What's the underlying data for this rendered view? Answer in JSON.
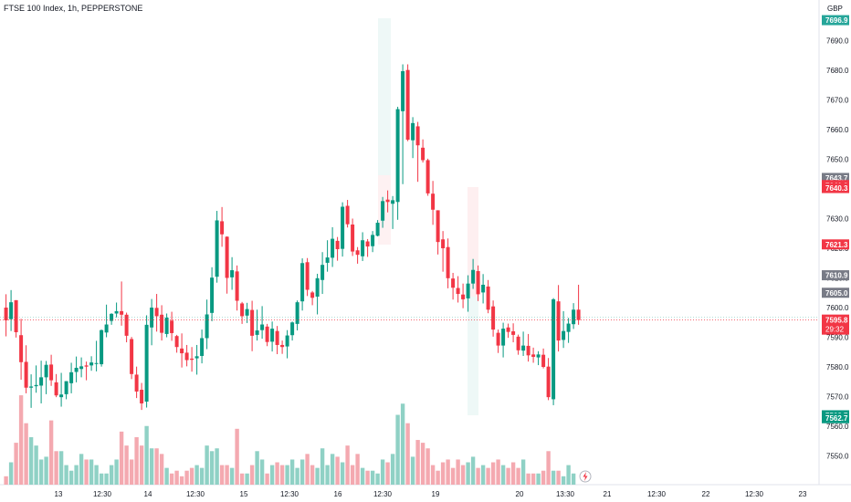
{
  "header": {
    "title": "FTSE 100 Index, 1h, PEPPERSTONE"
  },
  "currency": "GBP",
  "price_badges": [
    {
      "label": "7696.9",
      "price": 7696.9,
      "color": "#26a69a"
    },
    {
      "label": "7643.7",
      "price": 7643.7,
      "color": "#787b86"
    },
    {
      "label": "7641.3",
      "price": 7641.3,
      "color": "#f23645"
    },
    {
      "label": "7640.3",
      "price": 7640.3,
      "color": "#f23645"
    },
    {
      "label": "7621.3",
      "price": 7621.3,
      "color": "#f23645"
    },
    {
      "label": "7610.9",
      "price": 7610.9,
      "color": "#787b86"
    },
    {
      "label": "7605.0",
      "price": 7605.0,
      "color": "#787b86"
    },
    {
      "label": "7563.7",
      "price": 7563.7,
      "color": "#089981"
    },
    {
      "label": "7562.7",
      "price": 7562.7,
      "color": "#089981"
    }
  ],
  "last_price": {
    "label": "7595.8",
    "countdown": "29:32",
    "price": 7595.8,
    "color": "#f23645"
  },
  "chart_data": {
    "type": "candlestick",
    "title": "FTSE 100 Index, 1h, PEPPERSTONE",
    "ylim": [
      7545,
      7699
    ],
    "y_ticks": [
      "7690.0",
      "7680.0",
      "7670.0",
      "7660.0",
      "7650.0",
      "7640.0",
      "7630.0",
      "7620.0",
      "7610.0",
      "7600.0",
      "7590.0",
      "7580.0",
      "7570.0",
      "7560.0",
      "7550.0"
    ],
    "x_tick_labels": [
      "13",
      "12:30",
      "14",
      "12:30",
      "15",
      "12:30",
      "16",
      "12:30",
      "19",
      "20",
      "13:30",
      "21",
      "12:30",
      "22",
      "12:30",
      "23"
    ],
    "up_color": "#089981",
    "down_color": "#f23645",
    "ohlc": [
      [
        7600.0,
        7604.5,
        7590.3,
        7595.7
      ],
      [
        7596.1,
        7605.9,
        7592.1,
        7601.8
      ],
      [
        7602.5,
        7602.5,
        7589.9,
        7591.7
      ],
      [
        7590.7,
        7596.2,
        7575.7,
        7581.6
      ],
      [
        7581.7,
        7587.3,
        7571.1,
        7573.0
      ],
      [
        7573.0,
        7577.5,
        7566.2,
        7573.4
      ],
      [
        7573.5,
        7580.5,
        7571.3,
        7573.9
      ],
      [
        7573.7,
        7582.1,
        7567.7,
        7576.5
      ],
      [
        7576.5,
        7582.0,
        7570.8,
        7580.7
      ],
      [
        7580.8,
        7584.1,
        7573.6,
        7575.5
      ],
      [
        7574.8,
        7577.6,
        7569.8,
        7570.4
      ],
      [
        7569.8,
        7578.0,
        7566.6,
        7570.7
      ],
      [
        7570.8,
        7575.2,
        7569.1,
        7575.2
      ],
      [
        7574.5,
        7581.4,
        7571.1,
        7578.2
      ],
      [
        7578.3,
        7583.5,
        7574.8,
        7579.7
      ],
      [
        7579.3,
        7583.2,
        7576.5,
        7580.2
      ],
      [
        7580.5,
        7581.8,
        7575.5,
        7580.1
      ],
      [
        7580.5,
        7583.6,
        7578.7,
        7581.5
      ],
      [
        7581.3,
        7588.8,
        7578.5,
        7581.3
      ],
      [
        7580.9,
        7592.6,
        7580.1,
        7592.4
      ],
      [
        7591.6,
        7601.0,
        7590.0,
        7594.3
      ],
      [
        7595.5,
        7598.1,
        7594.2,
        7597.9
      ],
      [
        7598.0,
        7601.7,
        7596.7,
        7598.8
      ],
      [
        7598.8,
        7608.8,
        7593.9,
        7597.6
      ],
      [
        7597.6,
        7598.3,
        7588.3,
        7590.5
      ],
      [
        7589.4,
        7590.1,
        7575.9,
        7577.6
      ],
      [
        7577.4,
        7580.1,
        7569.5,
        7571.7
      ],
      [
        7572.3,
        7574.6,
        7565.5,
        7567.7
      ],
      [
        7568.3,
        7597.4,
        7566.3,
        7594.2
      ],
      [
        7593.3,
        7602.9,
        7587.3,
        7600.0
      ],
      [
        7599.9,
        7604.6,
        7591.9,
        7597.1
      ],
      [
        7597.6,
        7600.8,
        7588.9,
        7591.5
      ],
      [
        7591.1,
        7598.0,
        7590.0,
        7596.6
      ],
      [
        7595.6,
        7598.6,
        7588.8,
        7591.4
      ],
      [
        7590.4,
        7590.8,
        7584.8,
        7586.7
      ],
      [
        7586.2,
        7591.3,
        7579.8,
        7584.6
      ],
      [
        7584.8,
        7587.4,
        7580.2,
        7582.3
      ],
      [
        7582.8,
        7586.7,
        7578.4,
        7582.4
      ],
      [
        7582.9,
        7587.4,
        7577.4,
        7583.6
      ],
      [
        7583.7,
        7592.6,
        7581.2,
        7589.7
      ],
      [
        7589.7,
        7602.7,
        7586.0,
        7597.7
      ],
      [
        7598.2,
        7613.6,
        7595.4,
        7610.1
      ],
      [
        7610.4,
        7632.6,
        7608.4,
        7629.4
      ],
      [
        7629.1,
        7633.9,
        7620.5,
        7624.7
      ],
      [
        7623.9,
        7624.0,
        7604.7,
        7610.0
      ],
      [
        7610.2,
        7617.0,
        7606.0,
        7612.6
      ],
      [
        7612.2,
        7614.2,
        7599.0,
        7602.3
      ],
      [
        7601.4,
        7601.9,
        7594.5,
        7597.1
      ],
      [
        7597.3,
        7601.6,
        7594.8,
        7599.5
      ],
      [
        7599.2,
        7602.3,
        7585.3,
        7590.5
      ],
      [
        7590.8,
        7599.3,
        7588.9,
        7592.3
      ],
      [
        7592.4,
        7600.5,
        7589.5,
        7594.3
      ],
      [
        7593.6,
        7594.5,
        7587.0,
        7588.4
      ],
      [
        7588.5,
        7595.3,
        7585.2,
        7592.9
      ],
      [
        7592.1,
        7593.8,
        7584.3,
        7587.4
      ],
      [
        7587.4,
        7588.9,
        7584.4,
        7586.7
      ],
      [
        7586.9,
        7592.4,
        7582.9,
        7590.6
      ],
      [
        7590.7,
        7595.3,
        7588.9,
        7595.0
      ],
      [
        7594.5,
        7602.4,
        7592.3,
        7601.8
      ],
      [
        7602.1,
        7616.6,
        7599.0,
        7615.0
      ],
      [
        7615.3,
        7616.7,
        7603.9,
        7606.0
      ],
      [
        7605.1,
        7605.6,
        7600.8,
        7603.3
      ],
      [
        7603.7,
        7611.4,
        7597.7,
        7609.9
      ],
      [
        7609.3,
        7618.7,
        7604.6,
        7614.4
      ],
      [
        7615.1,
        7622.7,
        7612.1,
        7616.9
      ],
      [
        7616.8,
        7627.1,
        7613.7,
        7623.2
      ],
      [
        7622.5,
        7623.8,
        7615.8,
        7619.7
      ],
      [
        7619.8,
        7635.5,
        7617.2,
        7634.0
      ],
      [
        7634.3,
        7636.3,
        7627.0,
        7628.1
      ],
      [
        7628.0,
        7630.0,
        7617.4,
        7618.9
      ],
      [
        7619.3,
        7620.4,
        7614.8,
        7617.8
      ],
      [
        7617.3,
        7625.4,
        7615.7,
        7622.7
      ],
      [
        7622.3,
        7623.1,
        7617.1,
        7620.6
      ],
      [
        7620.7,
        7625.8,
        7618.7,
        7624.5
      ],
      [
        7624.2,
        7629.5,
        7624.0,
        7628.6
      ],
      [
        7629.3,
        7637.3,
        7626.9,
        7635.9
      ],
      [
        7636.4,
        7639.5,
        7632.1,
        7635.6
      ],
      [
        7635.0,
        7637.6,
        7626.5,
        7636.2
      ],
      [
        7635.6,
        7667.7,
        7629.6,
        7666.9
      ],
      [
        7666.2,
        7682.0,
        7641.6,
        7679.7
      ],
      [
        7680.1,
        7682.0,
        7656.1,
        7656.6
      ],
      [
        7656.4,
        7664.2,
        7650.4,
        7662.2
      ],
      [
        7661.1,
        7662.6,
        7642.4,
        7654.7
      ],
      [
        7653.9,
        7656.7,
        7648.9,
        7649.7
      ],
      [
        7649.7,
        7650.2,
        7637.7,
        7638.5
      ],
      [
        7638.4,
        7642.7,
        7627.9,
        7633.0
      ],
      [
        7632.8,
        7632.8,
        7617.9,
        7622.1
      ],
      [
        7623.0,
        7625.8,
        7612.1,
        7620.0
      ],
      [
        7620.4,
        7623.3,
        7606.5,
        7609.9
      ],
      [
        7609.8,
        7611.7,
        7602.7,
        7606.7
      ],
      [
        7606.6,
        7610.6,
        7601.7,
        7604.6
      ],
      [
        7604.4,
        7608.1,
        7599.8,
        7602.8
      ],
      [
        7603.1,
        7610.9,
        7598.6,
        7608.1
      ],
      [
        7608.1,
        7616.4,
        7606.3,
        7612.7
      ],
      [
        7612.3,
        7614.2,
        7602.2,
        7604.5
      ],
      [
        7605.1,
        7611.3,
        7601.4,
        7607.7
      ],
      [
        7607.1,
        7609.3,
        7598.1,
        7599.3
      ],
      [
        7600.4,
        7602.4,
        7590.2,
        7592.6
      ],
      [
        7591.5,
        7592.6,
        7584.7,
        7587.2
      ],
      [
        7587.2,
        7594.9,
        7583.2,
        7592.9
      ],
      [
        7593.3,
        7594.6,
        7589.8,
        7591.8
      ],
      [
        7592.0,
        7594.7,
        7588.3,
        7590.8
      ],
      [
        7590.2,
        7590.9,
        7584.1,
        7585.6
      ],
      [
        7585.5,
        7591.9,
        7583.7,
        7587.2
      ],
      [
        7587.1,
        7591.1,
        7581.8,
        7583.9
      ],
      [
        7584.2,
        7586.5,
        7581.4,
        7583.4
      ],
      [
        7583.2,
        7585.3,
        7580.6,
        7584.2
      ],
      [
        7584.1,
        7586.2,
        7579.5,
        7580.0
      ],
      [
        7580.1,
        7583.0,
        7568.8,
        7569.8
      ],
      [
        7569.1,
        7603.2,
        7567.1,
        7602.8
      ],
      [
        7602.1,
        7607.6,
        7585.2,
        7588.9
      ],
      [
        7589.1,
        7598.8,
        7586.4,
        7592.1
      ],
      [
        7591.8,
        7596.5,
        7588.1,
        7594.6
      ],
      [
        7594.4,
        7601.5,
        7592.8,
        7599.3
      ],
      [
        7599.3,
        7607.7,
        7594.2,
        7595.8
      ]
    ],
    "volume": [
      3,
      8,
      15,
      32,
      22,
      17,
      14,
      9,
      10,
      23,
      12,
      12,
      7,
      5,
      7,
      11,
      9,
      9,
      7,
      4,
      4,
      7,
      9,
      19,
      14,
      9,
      17,
      14,
      21,
      13,
      13,
      11,
      6,
      4,
      5,
      3,
      5,
      6,
      7,
      6,
      14,
      12,
      13,
      7,
      7,
      6,
      20,
      4,
      4,
      7,
      12,
      9,
      4,
      7,
      8,
      7,
      7,
      9,
      6,
      9,
      11,
      7,
      6,
      13,
      7,
      11,
      10,
      8,
      14,
      7,
      11,
      6,
      5,
      5,
      4,
      9,
      8,
      11,
      25,
      29,
      22,
      10,
      16,
      15,
      13,
      7,
      5,
      8,
      9,
      6,
      9,
      7,
      8,
      10,
      6,
      7,
      6,
      8,
      9,
      7,
      6,
      8,
      6,
      9,
      4,
      4,
      4,
      5,
      12,
      5,
      5,
      3,
      7,
      4
    ],
    "volume_colors": {
      "up": "#8fd1c5",
      "down": "#f4a9b0"
    }
  }
}
